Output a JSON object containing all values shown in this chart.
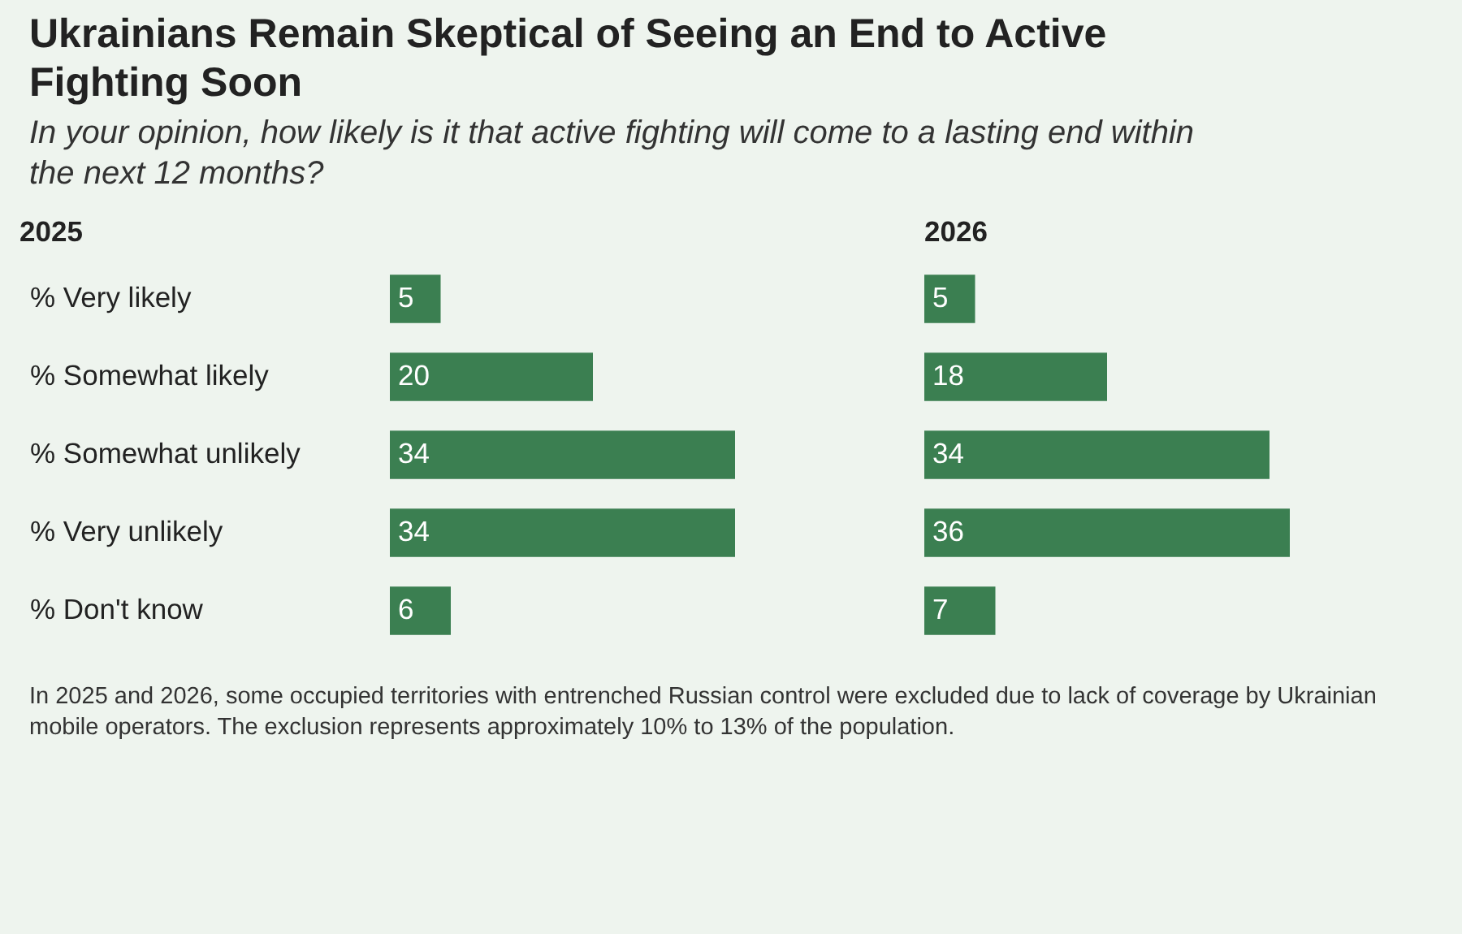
{
  "chart_data": [
    {
      "type": "bar",
      "orientation": "horizontal",
      "title": "Ukrainians Remain Skeptical of Seeing an End to Active Fighting Soon",
      "subtitle": "In your opinion, how likely is it that active fighting will come to a lasting end within the next 12 months?",
      "categories": [
        "% Very likely",
        "% Somewhat likely",
        "% Somewhat unlikely",
        "% Very unlikely",
        "% Don't know"
      ],
      "series": [
        {
          "name": "2025",
          "color": "#3b7f51",
          "values": [
            5,
            20,
            34,
            34,
            6
          ]
        }
      ],
      "data_labels": true
    },
    {
      "type": "bar",
      "orientation": "horizontal",
      "categories": [
        null,
        null,
        null,
        null,
        null
      ],
      "series": [
        {
          "name": "2026",
          "color": "#3b7f51",
          "values": [
            5,
            18,
            34,
            36,
            7
          ]
        }
      ],
      "data_labels": true,
      "annotations": [
        "In 2025 and 2026, some occupied territories with entrenched Russian control were excluded due to lack of coverage by Ukrainian mobile operators. The exclusion represents approximately 10% to 13% of the population."
      ]
    }
  ]
}
